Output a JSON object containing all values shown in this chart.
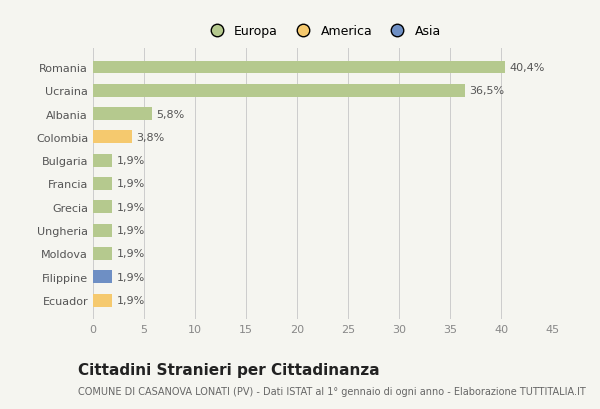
{
  "categories": [
    "Romania",
    "Ucraina",
    "Albania",
    "Colombia",
    "Bulgaria",
    "Francia",
    "Grecia",
    "Ungheria",
    "Moldova",
    "Filippine",
    "Ecuador"
  ],
  "values": [
    40.4,
    36.5,
    5.8,
    3.8,
    1.9,
    1.9,
    1.9,
    1.9,
    1.9,
    1.9,
    1.9
  ],
  "labels": [
    "40,4%",
    "36,5%",
    "5,8%",
    "3,8%",
    "1,9%",
    "1,9%",
    "1,9%",
    "1,9%",
    "1,9%",
    "1,9%",
    "1,9%"
  ],
  "colors": [
    "#b5c98e",
    "#b5c98e",
    "#b5c98e",
    "#f5c96e",
    "#b5c98e",
    "#b5c98e",
    "#b5c98e",
    "#b5c98e",
    "#b5c98e",
    "#6e8fc4",
    "#f5c96e"
  ],
  "legend_labels": [
    "Europa",
    "America",
    "Asia"
  ],
  "legend_colors": [
    "#b5c98e",
    "#f5c96e",
    "#6e8fc4"
  ],
  "xlim": [
    0,
    45
  ],
  "xticks": [
    0,
    5,
    10,
    15,
    20,
    25,
    30,
    35,
    40,
    45
  ],
  "title": "Cittadini Stranieri per Cittadinanza",
  "subtitle": "COMUNE DI CASANOVA LONATI (PV) - Dati ISTAT al 1° gennaio di ogni anno - Elaborazione TUTTITALIA.IT",
  "bg_color": "#f5f5f0",
  "bar_height": 0.55,
  "title_fontsize": 11,
  "subtitle_fontsize": 7,
  "label_fontsize": 8,
  "tick_fontsize": 8,
  "legend_fontsize": 9
}
